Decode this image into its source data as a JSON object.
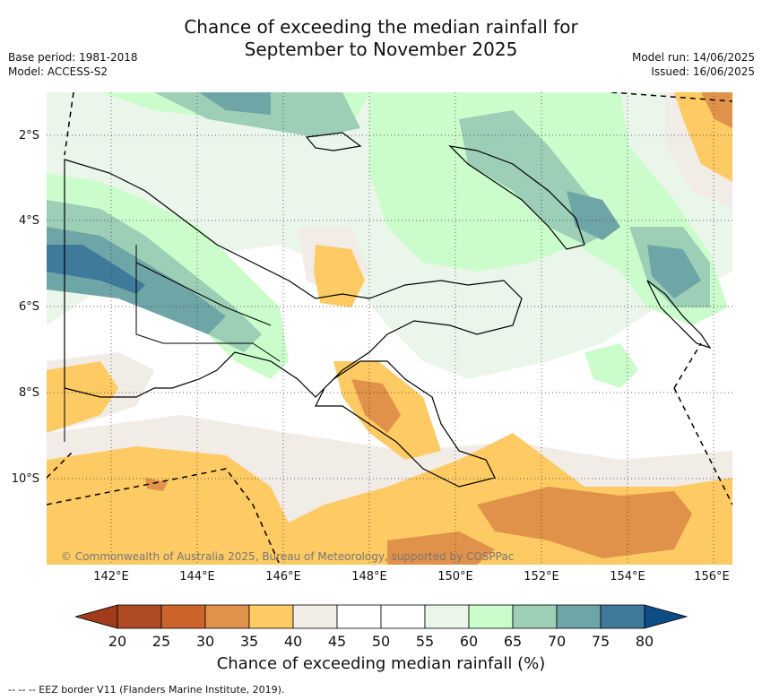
{
  "title_line1": "Chance of exceeding the median rainfall for",
  "title_line2": "September to November 2025",
  "meta_left": [
    "Base period: 1981-2018",
    "Model: ACCESS-S2"
  ],
  "meta_right": [
    "Model run: 14/06/2025",
    "Issued: 16/06/2025"
  ],
  "lat_labels": [
    "2°S",
    "4°S",
    "6°S",
    "8°S",
    "10°S"
  ],
  "lon_labels": [
    "142°E",
    "144°E",
    "146°E",
    "148°E",
    "150°E",
    "152°E",
    "154°E",
    "156°E"
  ],
  "copyright": "© Commonwealth of Australia 2025, Bureau of Meteorology, supported by COSPPac",
  "colorbar": {
    "ticks": [
      "20",
      "25",
      "30",
      "35",
      "40",
      "45",
      "50",
      "55",
      "60",
      "65",
      "70",
      "75",
      "80"
    ],
    "colors": [
      "#b04a24",
      "#cc642c",
      "#e0924a",
      "#fdca63",
      "#f1ece6",
      "#ffffff",
      "#ffffff",
      "#ebf6ea",
      "#cbfccb",
      "#9ccfb6",
      "#6ea5a7",
      "#3f7a9a"
    ],
    "under_color": "#a23a1c",
    "over_color": "#0e4c86",
    "title": "Chance of exceeding median rainfall (%)"
  },
  "footer": "-- --  -- EEZ border V11 (Flanders Marine Institute, 2019)."
}
